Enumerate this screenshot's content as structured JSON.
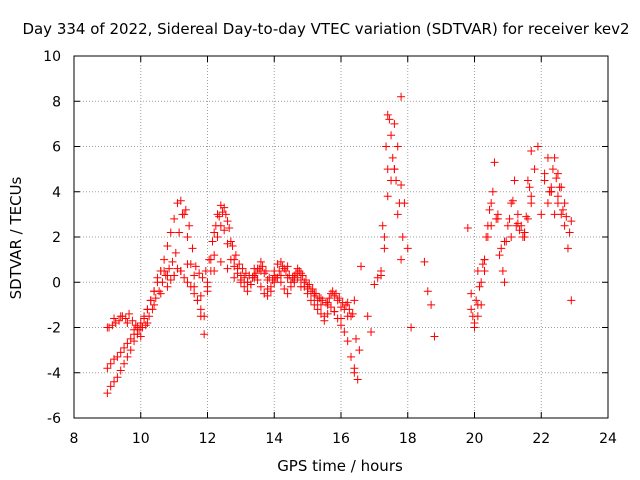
{
  "chart_data": {
    "type": "scatter",
    "title": "Day 334 of 2022, Sidereal Day-to-day VTEC variation (SDTVAR) for receiver kev2",
    "xlabel": "GPS time / hours",
    "ylabel": "SDTVAR / TECUs",
    "xlim": [
      8,
      24
    ],
    "ylim": [
      -6,
      10
    ],
    "xticks": [
      "8",
      "10",
      "12",
      "14",
      "16",
      "18",
      "20",
      "22",
      "24"
    ],
    "yticks": [
      "-6",
      "-4",
      "-2",
      "0",
      "2",
      "4",
      "6",
      "8",
      "10"
    ],
    "grid": true,
    "marker": "plus",
    "color": "#ff0000",
    "series": [
      {
        "name": "SDTVAR",
        "x": [
          9.0,
          9.1,
          9.2,
          9.3,
          9.4,
          9.5,
          9.6,
          9.7,
          9.8,
          9.9,
          10.0,
          10.1,
          10.2,
          10.3,
          10.4,
          10.5,
          10.6,
          10.7,
          10.8,
          10.9,
          11.0,
          11.1,
          11.2,
          11.3,
          11.4,
          11.5,
          11.6,
          11.7,
          11.8,
          11.9,
          12.0,
          12.1,
          12.2,
          12.3,
          12.4,
          12.5,
          12.6,
          12.7,
          12.8,
          12.9,
          13.0,
          13.1,
          13.2,
          13.3,
          13.4,
          13.5,
          13.6,
          13.7,
          13.8,
          13.9,
          14.0,
          14.1,
          14.2,
          14.3,
          14.4,
          14.5,
          14.6,
          14.7,
          14.8,
          14.9,
          15.0,
          15.1,
          15.2,
          15.3,
          15.4,
          15.5,
          15.6,
          15.7,
          15.8,
          15.9,
          16.0,
          16.1,
          16.2,
          16.3,
          16.4,
          16.5,
          16.6,
          16.8,
          16.9,
          17.0,
          17.1,
          17.2,
          17.3,
          17.4,
          17.5,
          17.6,
          17.7,
          17.8,
          17.9,
          18.0,
          18.1,
          18.5,
          18.6,
          18.7,
          18.8,
          19.8,
          19.9,
          20.0,
          20.1,
          20.2,
          20.3,
          20.4,
          20.5,
          20.6,
          20.7,
          20.8,
          20.9,
          21.0,
          21.1,
          21.2,
          21.3,
          21.4,
          21.5,
          21.6,
          21.7,
          21.8,
          21.9,
          22.0,
          22.1,
          22.2,
          22.3,
          22.4,
          22.5,
          22.6,
          22.7,
          22.8,
          22.9,
          9.0,
          9.1,
          9.2,
          9.3,
          9.4,
          9.5,
          9.6,
          9.7,
          9.8,
          9.9,
          10.0,
          10.1,
          10.2,
          10.3,
          10.4,
          10.5,
          10.6,
          10.7,
          10.8,
          10.9,
          11.0,
          11.1,
          11.2,
          11.3,
          11.4,
          11.5,
          11.6,
          11.7,
          11.8,
          11.9,
          12.0,
          12.1,
          12.2,
          12.3,
          12.4,
          12.5,
          12.6,
          12.7,
          12.8,
          12.9,
          13.0,
          13.1,
          13.2,
          13.3,
          13.4,
          13.5,
          13.6,
          13.7,
          13.8,
          13.9,
          14.0,
          14.1,
          14.2,
          14.3,
          14.4,
          14.5,
          14.6,
          14.7,
          14.8,
          14.9,
          15.0,
          15.1,
          15.2,
          15.3,
          15.4,
          15.5,
          15.6,
          15.7,
          15.8,
          15.9,
          16.0,
          16.1,
          16.2,
          16.3,
          16.4,
          17.3,
          17.4,
          17.5,
          17.6,
          17.7,
          17.8,
          20.0,
          20.1,
          20.2,
          20.3,
          20.4,
          21.5,
          21.6,
          21.7,
          22.2,
          22.3,
          22.4,
          22.5,
          22.6,
          9.0,
          9.2,
          9.4,
          9.6,
          9.8,
          10.0,
          10.2,
          10.4,
          10.6,
          10.8,
          11.0,
          11.2,
          11.4,
          11.6,
          11.8,
          12.0,
          12.2,
          12.4,
          12.6,
          12.8,
          13.0,
          13.2,
          13.4,
          13.6,
          13.8,
          14.0,
          14.2,
          14.4,
          14.6,
          14.8,
          15.0,
          15.2,
          15.4,
          15.6,
          15.8,
          16.0,
          16.2,
          16.4,
          17.2,
          17.4,
          17.6,
          17.8,
          19.9,
          20.1,
          20.3,
          20.5,
          20.7,
          20.9,
          21.1,
          21.3,
          21.5,
          21.7,
          22.1,
          22.3,
          22.5,
          22.7,
          22.9,
          9.05,
          9.15,
          9.25,
          9.35,
          9.45,
          9.55,
          9.65,
          9.75,
          9.85,
          9.95,
          10.05,
          10.15,
          10.25,
          10.35,
          10.45,
          10.55,
          10.65,
          10.75,
          10.85,
          10.95,
          11.05,
          11.15,
          11.25,
          11.35,
          11.45,
          11.55,
          11.65,
          11.75,
          11.85,
          11.95,
          12.05,
          12.15,
          12.25,
          12.35,
          12.45,
          12.55,
          12.65,
          12.75,
          12.85,
          12.95,
          13.05,
          13.15,
          13.25,
          13.35,
          13.45,
          13.55,
          13.65,
          13.75,
          13.85,
          13.95,
          14.05,
          14.15,
          14.25,
          14.35,
          14.45,
          14.55,
          14.65,
          14.75,
          14.85,
          14.95,
          15.05,
          15.15,
          15.25,
          15.35,
          15.45,
          15.55,
          15.65,
          15.75,
          15.85,
          15.95,
          16.05,
          16.15,
          16.25,
          16.35,
          16.45,
          16.55,
          17.25,
          17.35,
          17.45,
          17.55,
          17.65,
          17.75,
          17.85,
          19.95,
          20.05,
          20.15,
          20.25,
          20.35,
          20.45,
          20.55,
          20.65,
          20.75,
          20.85,
          20.95,
          21.05,
          21.15,
          21.25,
          21.35,
          21.45,
          21.55,
          21.65,
          22.25,
          22.35,
          22.45,
          22.55,
          22.65,
          22.75,
          22.85
        ],
        "y": [
          -4.9,
          -4.6,
          -4.4,
          -4.2,
          -3.9,
          -3.6,
          -3.3,
          -3.0,
          -2.6,
          -2.3,
          -2.0,
          -1.6,
          -1.2,
          -0.8,
          -0.4,
          0.0,
          0.5,
          1.0,
          1.6,
          2.2,
          2.8,
          3.5,
          3.6,
          3.0,
          2.0,
          0.8,
          -0.2,
          -0.8,
          -1.5,
          -2.3,
          -0.4,
          1.0,
          2.2,
          3.0,
          3.4,
          3.3,
          2.7,
          1.8,
          1.0,
          0.6,
          0.3,
          0.2,
          0.0,
          -0.1,
          0.2,
          0.6,
          0.9,
          0.4,
          0.1,
          -0.2,
          0.3,
          0.8,
          0.9,
          0.6,
          0.2,
          0.0,
          0.3,
          0.6,
          0.4,
          0.0,
          -0.2,
          -0.4,
          -0.6,
          -0.8,
          -1.0,
          -1.5,
          -1.0,
          -0.5,
          -0.6,
          -0.8,
          -1.1,
          -1.2,
          -0.9,
          -1.5,
          -3.8,
          -4.3,
          0.7,
          -1.5,
          -2.2,
          -0.1,
          0.2,
          0.5,
          2.0,
          5.0,
          6.5,
          7.0,
          6.0,
          8.2,
          3.5,
          1.5,
          -2.0,
          0.9,
          -0.4,
          -1.0,
          -2.4,
          2.4,
          -1.2,
          -2.0,
          -1.5,
          -1.0,
          0.5,
          2.0,
          3.5,
          5.3,
          3.0,
          1.5,
          0.0,
          2.5,
          3.5,
          4.5,
          3.0,
          2.5,
          2.2,
          2.8,
          3.5,
          5.0,
          6.0,
          3.0,
          4.5,
          5.5,
          4.0,
          5.5,
          4.8,
          3.0,
          2.5,
          1.5,
          -0.8,
          -3.8,
          -3.6,
          -3.4,
          -3.3,
          -3.1,
          -2.9,
          -2.7,
          -2.5,
          -2.3,
          -2.0,
          -1.8,
          -1.5,
          -1.2,
          -0.8,
          -0.4,
          0.2,
          0.5,
          0.5,
          0.3,
          0.1,
          0.3,
          0.6,
          0.5,
          0.2,
          0.0,
          -0.2,
          -0.5,
          -0.8,
          -1.2,
          -1.5,
          0.0,
          0.5,
          1.2,
          2.0,
          2.5,
          2.3,
          1.7,
          1.0,
          0.7,
          0.4,
          0.0,
          -0.2,
          -0.4,
          -0.1,
          0.3,
          0.1,
          -0.2,
          -0.5,
          -0.6,
          -0.4,
          0.0,
          0.2,
          0.0,
          -0.3,
          -0.5,
          -0.2,
          0.0,
          0.2,
          0.1,
          -0.2,
          -0.5,
          -0.8,
          -1.0,
          -1.2,
          -1.4,
          -1.7,
          -1.4,
          -1.1,
          -1.3,
          -1.6,
          -1.9,
          -2.2,
          -2.6,
          -3.3,
          -4.0,
          1.5,
          3.8,
          4.5,
          5.0,
          3.0,
          1.0,
          -1.8,
          -1.0,
          0.0,
          1.0,
          2.5,
          2.0,
          4.5,
          3.8,
          3.5,
          4.0,
          3.0,
          3.5,
          4.2,
          -2.0,
          -1.6,
          -1.5,
          -1.8,
          -2.1,
          -2.4,
          -1.8,
          -1.0,
          -0.5,
          -0.2,
          0.3,
          0.5,
          0.8,
          0.3,
          -0.6,
          -0.2,
          0.5,
          0.9,
          0.6,
          0.2,
          0.1,
          0.0,
          0.6,
          0.5,
          -0.3,
          0.5,
          0.3,
          0.7,
          0.1,
          -0.2,
          -0.3,
          -0.5,
          -0.7,
          -0.9,
          -1.3,
          -1.6,
          -1.5,
          -0.8,
          0.3,
          7.4,
          5.0,
          4.3,
          -0.5,
          0.5,
          1.0,
          2.5,
          2.8,
          1.8,
          2.0,
          2.6,
          2.2,
          5.8,
          4.8,
          4.2,
          3.8,
          3.5,
          2.7,
          -2.0,
          -1.9,
          -1.8,
          -1.7,
          -1.5,
          -1.6,
          -1.4,
          -1.7,
          -1.9,
          -2.1,
          -2.0,
          -1.9,
          -1.5,
          -1.2,
          -0.7,
          -0.4,
          0.0,
          0.3,
          0.6,
          0.9,
          1.3,
          2.2,
          3.0,
          3.2,
          2.5,
          1.5,
          0.7,
          0.4,
          0.2,
          0.5,
          1.0,
          1.8,
          2.5,
          2.9,
          3.1,
          3.0,
          2.4,
          1.6,
          1.2,
          0.8,
          0.6,
          0.4,
          0.3,
          0.2,
          0.4,
          0.6,
          0.7,
          0.5,
          0.2,
          0.1,
          0.2,
          0.5,
          0.7,
          0.5,
          0.3,
          0.2,
          0.4,
          0.5,
          0.3,
          0.1,
          -0.1,
          -0.3,
          -0.5,
          -0.7,
          -0.8,
          -0.9,
          -0.7,
          -0.4,
          -0.5,
          -0.7,
          -0.9,
          -1.0,
          -1.2,
          -1.4,
          -2.5,
          -3.0,
          2.5,
          6.0,
          7.2,
          5.5,
          4.5,
          3.5,
          2.0,
          -1.5,
          -0.8,
          -0.2,
          0.8,
          2.0,
          3.2,
          4.0,
          2.8,
          1.2,
          0.5,
          1.8,
          2.8,
          3.6,
          2.5,
          2.3,
          2.0,
          2.9,
          4.2,
          4.0,
          5.0,
          4.6,
          4.2,
          3.2,
          2.9,
          2.2
        ]
      }
    ]
  }
}
